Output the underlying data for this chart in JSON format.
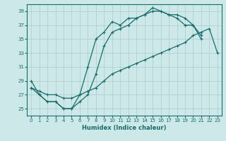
{
  "background_color": "#cce8e8",
  "grid_color": "#aacccc",
  "line_color": "#1a6b6b",
  "xlabel": "Humidex (Indice chaleur)",
  "ylim": [
    24,
    40
  ],
  "xlim": [
    -0.5,
    23.5
  ],
  "yticks": [
    25,
    27,
    29,
    31,
    33,
    35,
    37,
    39
  ],
  "xticks": [
    0,
    1,
    2,
    3,
    4,
    5,
    6,
    7,
    8,
    9,
    10,
    11,
    12,
    13,
    14,
    15,
    16,
    17,
    18,
    19,
    20,
    21,
    22,
    23
  ],
  "y_upper": [
    29,
    27,
    26,
    26,
    25,
    25,
    27,
    31,
    35,
    36,
    37.5,
    37,
    38,
    38,
    38.5,
    39.5,
    39,
    38.5,
    38.5,
    38,
    37,
    35.5,
    null,
    null
  ],
  "y_mid": [
    28,
    27,
    26,
    26,
    25,
    25,
    26,
    27,
    30,
    34,
    36,
    36.5,
    37,
    38,
    38.5,
    39,
    39,
    38.5,
    38,
    37,
    37,
    35,
    null,
    null
  ],
  "y_low": [
    28,
    27.5,
    27,
    27,
    26.5,
    26.5,
    27,
    27.5,
    28,
    29,
    30,
    30.5,
    31,
    31.5,
    32,
    32.5,
    33,
    33.5,
    34,
    34.5,
    35.5,
    36,
    36.5,
    33
  ]
}
